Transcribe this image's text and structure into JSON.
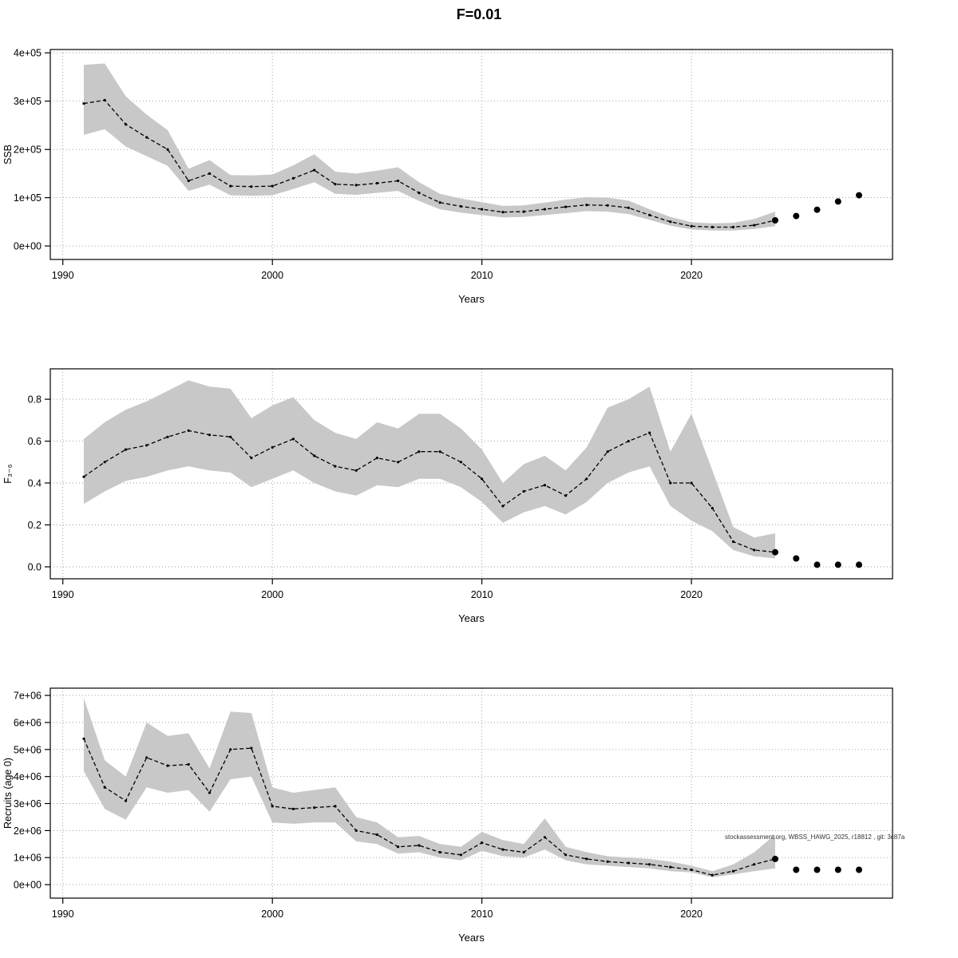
{
  "title": "F=0.01",
  "chart_data": [
    {
      "type": "line",
      "name": "ssb",
      "title": "",
      "ylabel": "SSB",
      "xlabel": "Years",
      "grid": true,
      "band_color": "#c8c8c8",
      "line_color": "#000000",
      "xlim": [
        1989.4,
        2029.6
      ],
      "xticks": [
        1990,
        2000,
        2010,
        2020
      ],
      "ylim": [
        0,
        400000
      ],
      "ylim_draw": [
        -28000,
        407000
      ],
      "yticks": [
        0,
        100000,
        200000,
        300000,
        400000
      ],
      "ytick_labels": [
        "0e+00",
        "1e+05",
        "2e+05",
        "3e+05",
        "4e+05"
      ],
      "years": [
        1991,
        1992,
        1993,
        1994,
        1995,
        1996,
        1997,
        1998,
        1999,
        2000,
        2001,
        2002,
        2003,
        2004,
        2005,
        2006,
        2007,
        2008,
        2009,
        2010,
        2011,
        2012,
        2013,
        2014,
        2015,
        2016,
        2017,
        2018,
        2019,
        2020,
        2021,
        2022,
        2023,
        2024
      ],
      "values": [
        295000,
        302000,
        252000,
        225000,
        200000,
        135000,
        150000,
        124000,
        123000,
        124000,
        140000,
        157000,
        128000,
        126000,
        130000,
        135000,
        110000,
        90000,
        82000,
        76000,
        70000,
        71000,
        76000,
        81000,
        85000,
        84000,
        79000,
        64000,
        50000,
        41000,
        39000,
        39000,
        43000,
        53000
      ],
      "lower": [
        230000,
        242000,
        206000,
        186000,
        166000,
        114000,
        127000,
        105000,
        104000,
        105000,
        118000,
        132000,
        108000,
        106000,
        110000,
        114000,
        93000,
        76000,
        69000,
        64000,
        59000,
        60000,
        64000,
        68000,
        72000,
        71000,
        66000,
        54000,
        42000,
        34000,
        32000,
        32000,
        35000,
        41000
      ],
      "upper": [
        375000,
        378000,
        310000,
        272000,
        240000,
        160000,
        178000,
        147000,
        146000,
        148000,
        167000,
        190000,
        154000,
        150000,
        156000,
        163000,
        132000,
        108000,
        98000,
        91000,
        83000,
        84000,
        90000,
        96000,
        101000,
        100000,
        94000,
        76000,
        60000,
        49000,
        47000,
        48000,
        56000,
        71000
      ],
      "forecast_years": [
        2025,
        2026,
        2027,
        2028
      ],
      "forecast_values": [
        62000,
        75000,
        92000,
        105000
      ],
      "annotation": ""
    },
    {
      "type": "line",
      "name": "fbar",
      "title": "",
      "ylabel": "F₃₋₆",
      "xlabel": "Years",
      "grid": true,
      "band_color": "#c8c8c8",
      "line_color": "#000000",
      "xlim": [
        1989.4,
        2029.6
      ],
      "xticks": [
        1990,
        2000,
        2010,
        2020
      ],
      "ylim": [
        0,
        0.8
      ],
      "ylim_draw": [
        -0.057,
        0.945
      ],
      "yticks": [
        0,
        0.2,
        0.4,
        0.6,
        0.8
      ],
      "ytick_labels": [
        "0.0",
        "0.2",
        "0.4",
        "0.6",
        "0.8"
      ],
      "years": [
        1991,
        1992,
        1993,
        1994,
        1995,
        1996,
        1997,
        1998,
        1999,
        2000,
        2001,
        2002,
        2003,
        2004,
        2005,
        2006,
        2007,
        2008,
        2009,
        2010,
        2011,
        2012,
        2013,
        2014,
        2015,
        2016,
        2017,
        2018,
        2019,
        2020,
        2021,
        2022,
        2023,
        2024
      ],
      "values": [
        0.43,
        0.5,
        0.56,
        0.58,
        0.62,
        0.65,
        0.63,
        0.62,
        0.52,
        0.57,
        0.61,
        0.53,
        0.48,
        0.46,
        0.52,
        0.5,
        0.55,
        0.55,
        0.5,
        0.42,
        0.29,
        0.36,
        0.39,
        0.34,
        0.42,
        0.55,
        0.6,
        0.64,
        0.4,
        0.4,
        0.28,
        0.12,
        0.08,
        0.07
      ],
      "lower": [
        0.3,
        0.36,
        0.41,
        0.43,
        0.46,
        0.48,
        0.46,
        0.45,
        0.38,
        0.42,
        0.46,
        0.4,
        0.36,
        0.34,
        0.39,
        0.38,
        0.42,
        0.42,
        0.38,
        0.31,
        0.21,
        0.26,
        0.29,
        0.25,
        0.31,
        0.4,
        0.45,
        0.48,
        0.29,
        0.22,
        0.17,
        0.08,
        0.05,
        0.04
      ],
      "upper": [
        0.61,
        0.69,
        0.75,
        0.79,
        0.84,
        0.89,
        0.86,
        0.85,
        0.71,
        0.77,
        0.81,
        0.7,
        0.64,
        0.61,
        0.69,
        0.66,
        0.73,
        0.73,
        0.66,
        0.56,
        0.4,
        0.49,
        0.53,
        0.46,
        0.57,
        0.76,
        0.8,
        0.86,
        0.55,
        0.73,
        0.46,
        0.19,
        0.14,
        0.16
      ],
      "forecast_years": [
        2025,
        2026,
        2027,
        2028
      ],
      "forecast_values": [
        0.04,
        0.01,
        0.01,
        0.01
      ],
      "annotation": ""
    },
    {
      "type": "line",
      "name": "recruits",
      "title": "",
      "ylabel": "Recruits (age 0)",
      "xlabel": "Years",
      "grid": true,
      "band_color": "#c8c8c8",
      "line_color": "#000000",
      "xlim": [
        1989.4,
        2029.6
      ],
      "xticks": [
        1990,
        2000,
        2010,
        2020
      ],
      "ylim": [
        0,
        7000000
      ],
      "ylim_draw": [
        -500000,
        7270000
      ],
      "yticks": [
        0,
        1000000,
        2000000,
        3000000,
        4000000,
        5000000,
        6000000,
        7000000
      ],
      "ytick_labels": [
        "0e+00",
        "1e+06",
        "2e+06",
        "3e+06",
        "4e+06",
        "5e+06",
        "6e+06",
        "7e+06"
      ],
      "years": [
        1991,
        1992,
        1993,
        1994,
        1995,
        1996,
        1997,
        1998,
        1999,
        2000,
        2001,
        2002,
        2003,
        2004,
        2005,
        2006,
        2007,
        2008,
        2009,
        2010,
        2011,
        2012,
        2013,
        2014,
        2015,
        2016,
        2017,
        2018,
        2019,
        2020,
        2021,
        2022,
        2023,
        2024
      ],
      "values": [
        5400000,
        3600000,
        3100000,
        4700000,
        4400000,
        4450000,
        3400000,
        5000000,
        5050000,
        2900000,
        2800000,
        2850000,
        2900000,
        2000000,
        1850000,
        1400000,
        1450000,
        1200000,
        1100000,
        1550000,
        1300000,
        1200000,
        1750000,
        1100000,
        950000,
        850000,
        800000,
        750000,
        650000,
        550000,
        350000,
        500000,
        750000,
        950000
      ],
      "lower": [
        4200000,
        2800000,
        2400000,
        3600000,
        3400000,
        3500000,
        2700000,
        3900000,
        4000000,
        2300000,
        2250000,
        2300000,
        2300000,
        1600000,
        1500000,
        1150000,
        1200000,
        1000000,
        900000,
        1250000,
        1050000,
        1000000,
        1300000,
        900000,
        750000,
        700000,
        650000,
        600000,
        500000,
        450000,
        270000,
        380000,
        500000,
        600000
      ],
      "upper": [
        6900000,
        4600000,
        4000000,
        6000000,
        5500000,
        5600000,
        4300000,
        6400000,
        6350000,
        3600000,
        3400000,
        3500000,
        3600000,
        2500000,
        2300000,
        1750000,
        1800000,
        1500000,
        1400000,
        1950000,
        1650000,
        1500000,
        2450000,
        1400000,
        1200000,
        1050000,
        1000000,
        950000,
        850000,
        700000,
        500000,
        750000,
        1200000,
        1850000
      ],
      "forecast_years": [
        2025,
        2026,
        2027,
        2028
      ],
      "forecast_values": [
        550000,
        550000,
        550000,
        550000
      ],
      "annotation": "stockassessment.org, WBSS_HAWG_2025, r18812 , git: 3c87a"
    }
  ]
}
